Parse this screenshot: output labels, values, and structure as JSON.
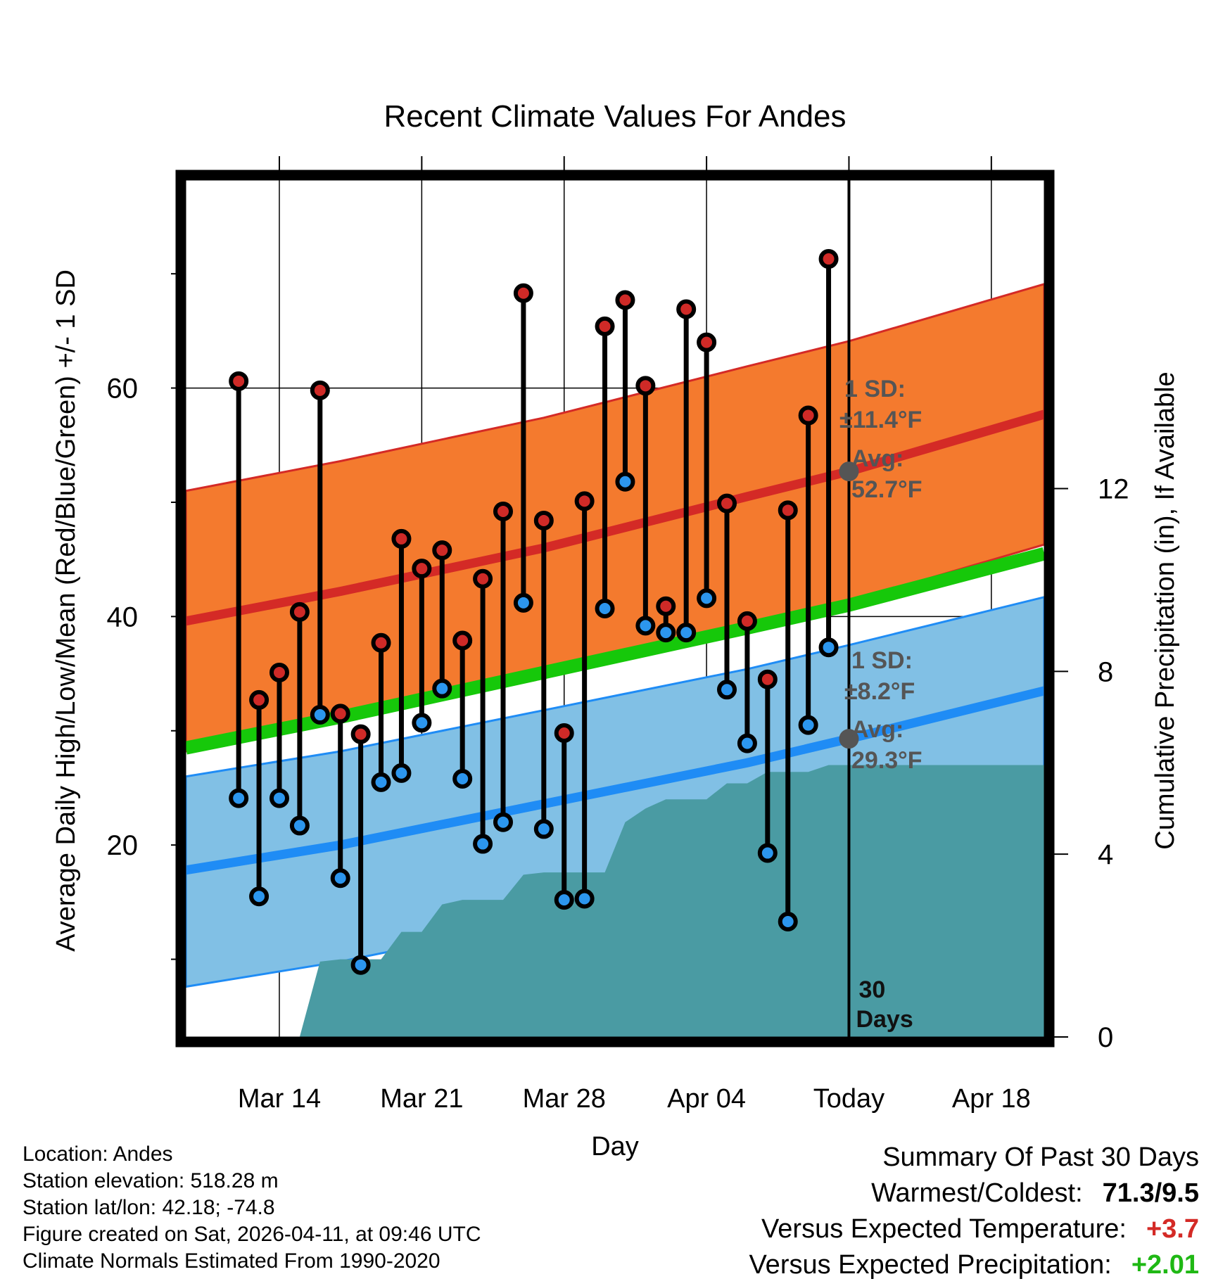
{
  "colors": {
    "high_band": "#f47a2e",
    "high_line": "#d42a26",
    "low_band": "#81c0e5",
    "low_line": "#1f8cf5",
    "mean_line": "#16c80a",
    "precip": "#4a9ba3",
    "high_dot": "#cf2a27",
    "low_dot": "#2c96ee",
    "anno": "#555555",
    "warm": "#d42a26",
    "precip_pos": "#1fb814"
  },
  "chart_data": {
    "type": "line",
    "title": "Recent Climate Values For Andes",
    "xlabel": "Day",
    "ylabel": "Average Daily High/Low/Mean (Red/Blue/Green) +/- 1 SD",
    "y2label": "Cumulative Precipitation (in), If Available",
    "xlim_days": [
      -32.6,
      9.6
    ],
    "ylim": [
      3.2,
      78.2
    ],
    "y2lim": [
      0,
      18.75
    ],
    "yticks": [
      60,
      40,
      20
    ],
    "yminor_ticks": [
      10,
      30,
      50,
      70
    ],
    "y2ticks": [
      12,
      8,
      4,
      0
    ],
    "xticks": [
      {
        "day": -28,
        "label": "Mar 14"
      },
      {
        "day": -21,
        "label": "Mar 21"
      },
      {
        "day": -14,
        "label": "Mar 28"
      },
      {
        "day": -7,
        "label": "Apr 04"
      },
      {
        "day": 0,
        "label": "Today"
      },
      {
        "day": 7,
        "label": "Apr 18"
      }
    ],
    "today_marker": {
      "day": 0,
      "label": "30 Days"
    },
    "normals": {
      "x": [
        -32.6,
        -25,
        -15,
        -5,
        0,
        9.6
      ],
      "avg_high": [
        39.6,
        42.2,
        46.0,
        50.5,
        52.7,
        57.7
      ],
      "high_sd_upper": [
        51.0,
        53.6,
        57.4,
        61.9,
        64.1,
        69.1
      ],
      "high_sd_lower": [
        28.2,
        30.8,
        34.6,
        39.1,
        41.3,
        46.3
      ],
      "avg_mean": [
        28.5,
        31.2,
        35.1,
        39.0,
        41.0,
        45.5
      ],
      "avg_low": [
        17.8,
        20.0,
        23.6,
        27.2,
        29.3,
        33.5
      ],
      "low_sd_upper": [
        26.0,
        28.2,
        31.8,
        35.4,
        37.5,
        41.7
      ],
      "low_sd_lower": [
        7.6,
        9.8,
        13.4,
        17.0,
        21.1,
        25.3
      ]
    },
    "annotations": {
      "high_sd": "1 SD:",
      "high_sd_value": "±11.4°F",
      "high_avg": "Avg:",
      "high_avg_value": "52.7°F",
      "high_avg_at": 52.7,
      "low_sd": "1 SD:",
      "low_sd_value": "±8.2°F",
      "low_avg": "Avg:",
      "low_avg_value": "29.3°F",
      "low_avg_at": 29.3
    },
    "days": [
      -30,
      -29,
      -28,
      -27,
      -26,
      -25,
      -24,
      -23,
      -22,
      -21,
      -20,
      -19,
      -18,
      -17,
      -16,
      -15,
      -14,
      -13,
      -12,
      -11,
      -10,
      -9,
      -8,
      -7,
      -6,
      -5,
      -4,
      -3,
      -2,
      -1
    ],
    "highs": [
      60.6,
      32.7,
      35.1,
      40.4,
      59.8,
      31.5,
      29.7,
      37.7,
      46.8,
      44.2,
      45.8,
      37.9,
      43.3,
      49.2,
      68.3,
      48.4,
      29.8,
      50.1,
      65.4,
      67.7,
      60.2,
      40.9,
      66.9,
      64.0,
      49.9,
      39.6,
      34.5,
      49.3,
      57.6,
      71.3
    ],
    "lows": [
      24.1,
      15.5,
      24.1,
      21.7,
      31.4,
      17.1,
      9.5,
      25.5,
      26.3,
      30.7,
      33.7,
      25.8,
      20.1,
      22.0,
      41.2,
      21.4,
      15.2,
      15.3,
      40.7,
      51.8,
      39.2,
      38.6,
      38.6,
      41.6,
      33.6,
      28.9,
      19.3,
      13.3,
      30.5,
      37.3
    ],
    "precip_cumulative": {
      "x": [
        -27,
        -26,
        -25,
        -24,
        -23,
        -22,
        -21,
        -20,
        -19,
        -18,
        -17,
        -16,
        -15,
        -14,
        -13,
        -12,
        -11,
        -10,
        -9,
        -8,
        -7,
        -6,
        -5,
        -4,
        -3,
        -2,
        -1,
        0,
        9.6
      ],
      "y": [
        0,
        1.65,
        1.7,
        1.7,
        1.7,
        2.3,
        2.3,
        2.9,
        3.0,
        3.0,
        3.0,
        3.55,
        3.6,
        3.6,
        3.6,
        3.6,
        4.7,
        5.0,
        5.2,
        5.2,
        5.2,
        5.55,
        5.55,
        5.8,
        5.8,
        5.8,
        5.95,
        5.95,
        5.95
      ]
    }
  },
  "info": {
    "location": "Location: Andes",
    "elevation": "Station elevation: 518.28 m",
    "latlon": "Station lat/lon: 42.18; -74.8",
    "created": "Figure created on Sat, 2026-04-11, at 09:46 UTC",
    "normals": "Climate Normals Estimated From 1990-2020"
  },
  "summary": {
    "title": "Summary Of Past 30 Days",
    "warm_cold_label": "Warmest/Coldest:",
    "warm_cold_value": "71.3/9.5",
    "temp_label": "Versus Expected Temperature:",
    "temp_value": "+3.7",
    "precip_label": "Versus Expected Precipitation:",
    "precip_value": "+2.01"
  }
}
